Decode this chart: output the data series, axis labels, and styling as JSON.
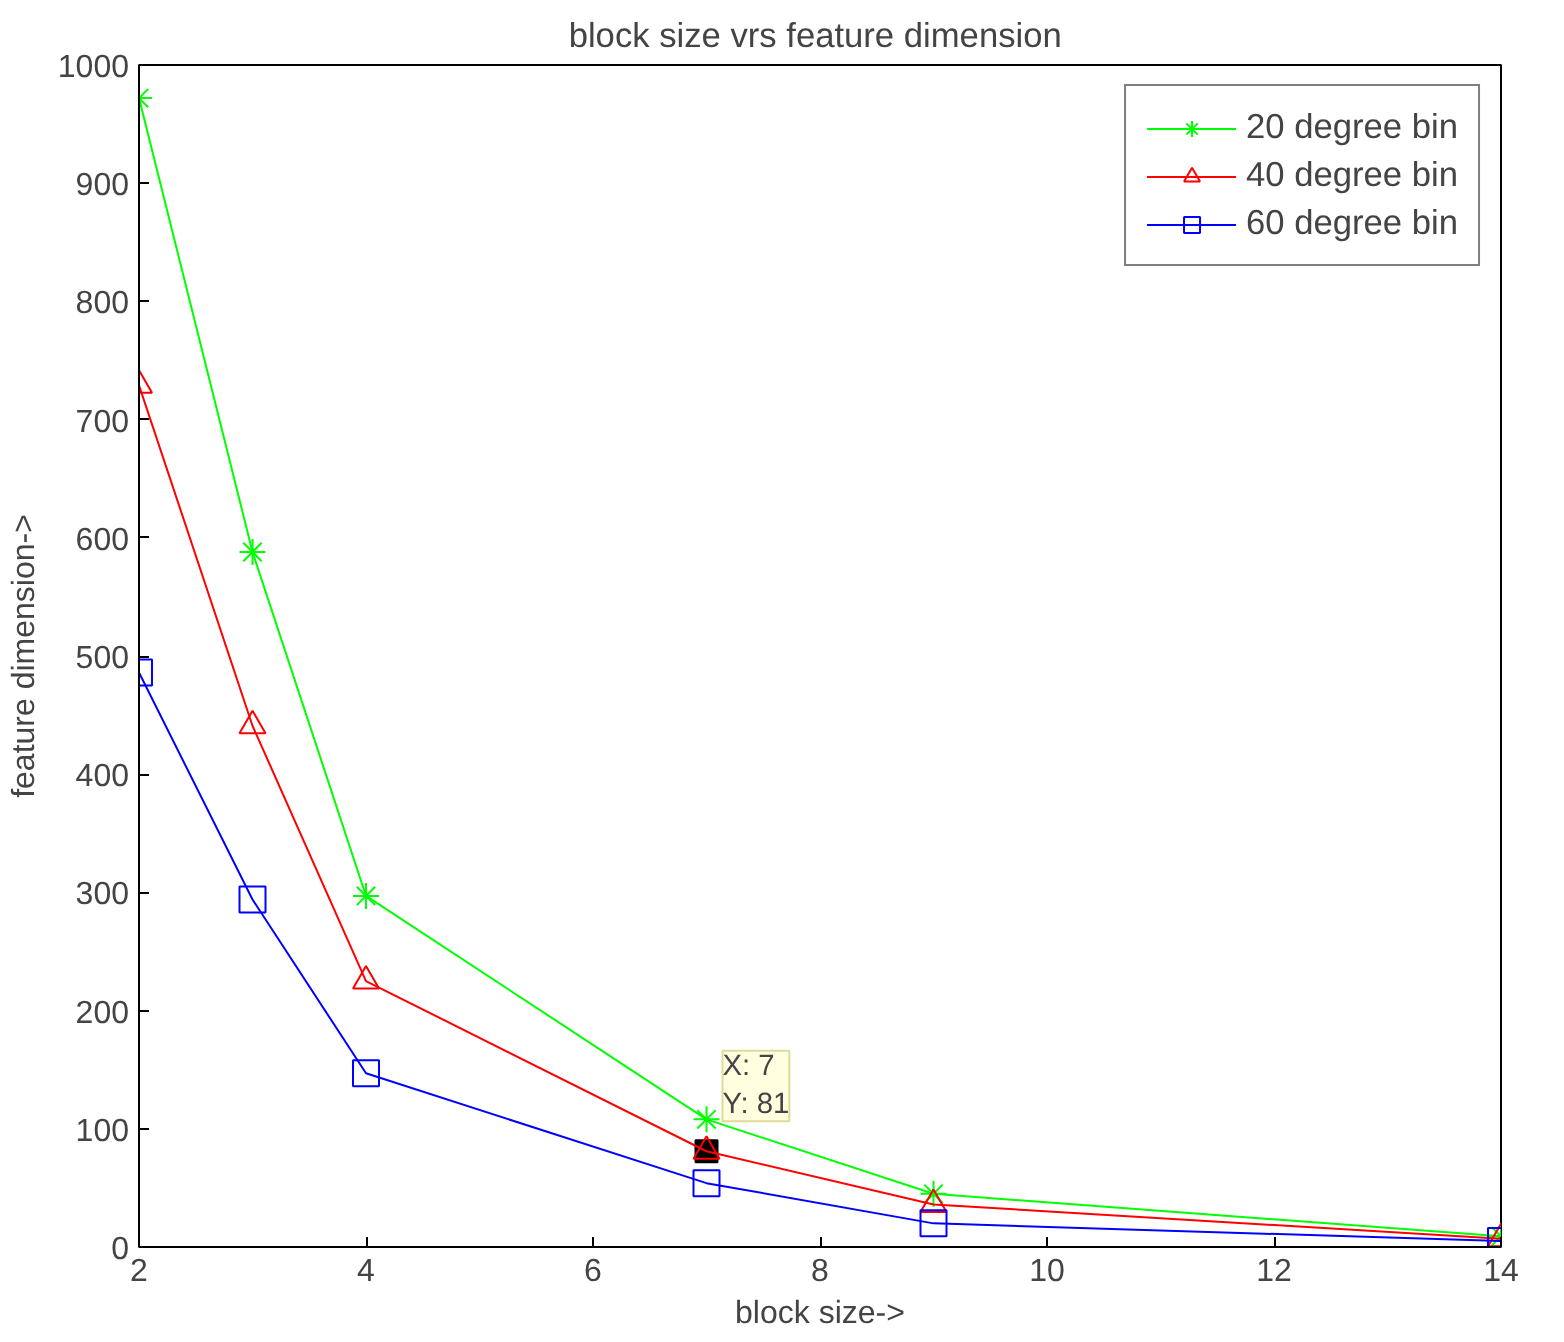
{
  "chart_data": {
    "type": "line",
    "title": "block size vrs  feature dimension",
    "xlabel": "block size->",
    "ylabel": "feature dimension->",
    "x": [
      2,
      3,
      4,
      7,
      9,
      14
    ],
    "xlim": [
      2,
      14
    ],
    "xticks": [
      2,
      4,
      6,
      8,
      10,
      12,
      14
    ],
    "ylim": [
      0,
      1000
    ],
    "yticks": [
      0,
      100,
      200,
      300,
      400,
      500,
      600,
      700,
      800,
      900,
      1000
    ],
    "grid": false,
    "legend": "top right",
    "series": [
      {
        "name": "20 degree bin",
        "color": "#00ff00",
        "marker": "cross",
        "values": [
          972,
          588,
          297,
          108,
          45,
          9
        ]
      },
      {
        "name": "40 degree bin",
        "color": "#ff0000",
        "marker": "triangle",
        "values": [
          729,
          441,
          225,
          81,
          36,
          7
        ]
      },
      {
        "name": "60 degree bin",
        "color": "#0000ff",
        "marker": "square",
        "values": [
          486,
          294,
          147,
          54,
          20,
          5
        ]
      }
    ],
    "annotations": [
      {
        "text": "X: 7\nY: 81",
        "x": 7,
        "y": 81
      }
    ]
  }
}
